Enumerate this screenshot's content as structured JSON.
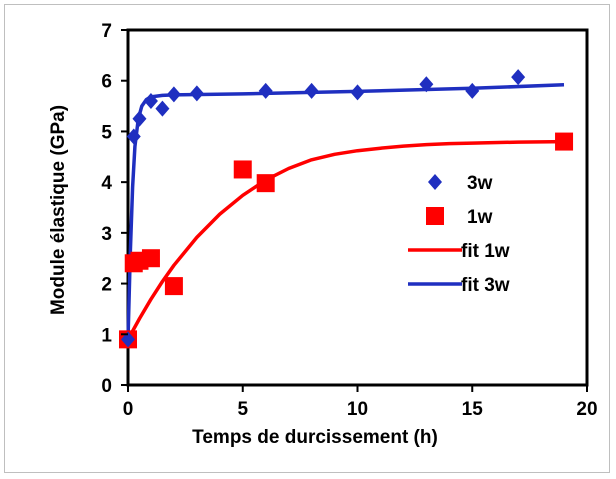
{
  "chart_data": {
    "type": "scatter",
    "title": "",
    "xlabel": "Temps de durcissement (h)",
    "ylabel": "Module élastique (GPa)",
    "xlim": [
      0,
      20
    ],
    "ylim": [
      0,
      7
    ],
    "xticks": [
      "0",
      "5",
      "10",
      "15",
      "20"
    ],
    "yticks": [
      "0",
      "1",
      "2",
      "3",
      "4",
      "5",
      "6",
      "7"
    ],
    "grid": false,
    "legend_position": "center-right",
    "series": [
      {
        "name": "3w",
        "kind": "scatter",
        "marker": "diamond",
        "color": "#1f2fc0",
        "points": [
          {
            "x": 0,
            "y": 0.9
          },
          {
            "x": 0.25,
            "y": 4.9
          },
          {
            "x": 0.5,
            "y": 5.25
          },
          {
            "x": 1,
            "y": 5.6
          },
          {
            "x": 1.5,
            "y": 5.45
          },
          {
            "x": 2,
            "y": 5.73
          },
          {
            "x": 3,
            "y": 5.75
          },
          {
            "x": 6,
            "y": 5.8
          },
          {
            "x": 8,
            "y": 5.8
          },
          {
            "x": 10,
            "y": 5.77
          },
          {
            "x": 13,
            "y": 5.93
          },
          {
            "x": 15,
            "y": 5.8
          },
          {
            "x": 17,
            "y": 6.07
          }
        ]
      },
      {
        "name": "1w",
        "kind": "scatter",
        "marker": "square",
        "color": "#ff0000",
        "points": [
          {
            "x": 0,
            "y": 0.9
          },
          {
            "x": 0.25,
            "y": 2.4
          },
          {
            "x": 0.5,
            "y": 2.45
          },
          {
            "x": 1,
            "y": 2.5
          },
          {
            "x": 2,
            "y": 1.95
          },
          {
            "x": 5,
            "y": 4.25
          },
          {
            "x": 6,
            "y": 3.98
          },
          {
            "x": 19,
            "y": 4.8
          }
        ]
      },
      {
        "name": "fit 1w",
        "kind": "line",
        "color": "#ff0000",
        "points": [
          {
            "x": 0,
            "y": 0.9
          },
          {
            "x": 0.5,
            "y": 1.31
          },
          {
            "x": 1,
            "y": 1.69
          },
          {
            "x": 1.5,
            "y": 2.04
          },
          {
            "x": 2,
            "y": 2.36
          },
          {
            "x": 3,
            "y": 2.91
          },
          {
            "x": 4,
            "y": 3.37
          },
          {
            "x": 5,
            "y": 3.74
          },
          {
            "x": 6,
            "y": 4.04
          },
          {
            "x": 7,
            "y": 4.27
          },
          {
            "x": 8,
            "y": 4.44
          },
          {
            "x": 9,
            "y": 4.55
          },
          {
            "x": 10,
            "y": 4.62
          },
          {
            "x": 11,
            "y": 4.67
          },
          {
            "x": 12,
            "y": 4.71
          },
          {
            "x": 13,
            "y": 4.74
          },
          {
            "x": 14,
            "y": 4.76
          },
          {
            "x": 15,
            "y": 4.77
          },
          {
            "x": 17,
            "y": 4.79
          },
          {
            "x": 19,
            "y": 4.8
          }
        ]
      },
      {
        "name": "fit 3w",
        "kind": "line",
        "color": "#1f2fc0",
        "points": [
          {
            "x": 0,
            "y": 0.9
          },
          {
            "x": 0.1,
            "y": 2.6
          },
          {
            "x": 0.2,
            "y": 3.9
          },
          {
            "x": 0.3,
            "y": 4.7
          },
          {
            "x": 0.45,
            "y": 5.25
          },
          {
            "x": 0.6,
            "y": 5.5
          },
          {
            "x": 0.8,
            "y": 5.63
          },
          {
            "x": 1,
            "y": 5.68
          },
          {
            "x": 1.5,
            "y": 5.71
          },
          {
            "x": 2,
            "y": 5.72
          },
          {
            "x": 5,
            "y": 5.74
          },
          {
            "x": 10,
            "y": 5.79
          },
          {
            "x": 15,
            "y": 5.85
          },
          {
            "x": 19,
            "y": 5.92
          }
        ]
      }
    ],
    "legend": [
      {
        "label": "3w",
        "symbol": "diamond",
        "color": "#1f2fc0"
      },
      {
        "label": "1w",
        "symbol": "square",
        "color": "#ff0000"
      },
      {
        "label": "fit 1w",
        "symbol": "line",
        "color": "#ff0000"
      },
      {
        "label": "fit 3w",
        "symbol": "line",
        "color": "#1f2fc0"
      }
    ]
  }
}
